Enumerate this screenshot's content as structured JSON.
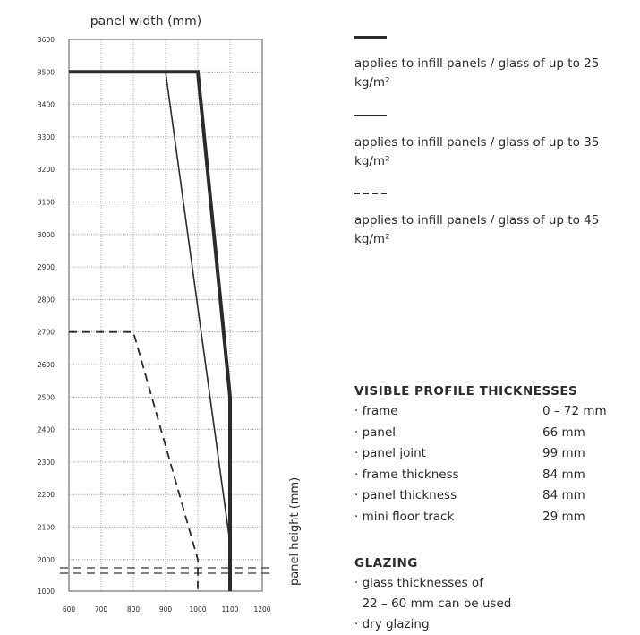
{
  "chart_data": {
    "type": "line",
    "title": "",
    "xlabel": "panel width (mm)",
    "ylabel": "panel height (mm)",
    "x_ticks": [
      600,
      700,
      800,
      900,
      1000,
      1100,
      1200
    ],
    "y_ticks": [
      1000,
      2000,
      2100,
      2200,
      2300,
      2400,
      2500,
      2600,
      2700,
      2800,
      2900,
      3000,
      3100,
      3200,
      3300,
      3400,
      3500,
      3600
    ],
    "y_axis_break": "between 1000 and 2000",
    "xlim": [
      600,
      1200
    ],
    "grid": "dotted",
    "series": [
      {
        "style": "thick",
        "points": [
          [
            600,
            3500
          ],
          [
            1000,
            3500
          ],
          [
            1100,
            2500
          ],
          [
            1100,
            1000
          ]
        ]
      },
      {
        "style": "thin",
        "points": [
          [
            900,
            3500
          ],
          [
            1100,
            2050
          ],
          [
            1100,
            1000
          ]
        ]
      },
      {
        "style": "dashed",
        "points": [
          [
            600,
            2700
          ],
          [
            800,
            2700
          ],
          [
            1000,
            2000
          ],
          [
            1000,
            1000
          ]
        ]
      }
    ]
  },
  "legend": [
    {
      "style": "thick",
      "text": "applies to infill panels / glass of up to 25 kg/m²"
    },
    {
      "style": "thin",
      "text": "applies to infill panels / glass of up to 35 kg/m²"
    },
    {
      "style": "dashed",
      "text": "applies to infill panels / glass of up to 45 kg/m²"
    }
  ],
  "specs": {
    "heading": "VISIBLE PROFILE THICKNESSES",
    "rows": [
      {
        "label": "· frame",
        "value": "0 – 72 mm"
      },
      {
        "label": "· panel",
        "value": "66 mm"
      },
      {
        "label": "· panel joint",
        "value": "99 mm"
      },
      {
        "label": "· frame thickness",
        "value": "84 mm"
      },
      {
        "label": "· panel thickness",
        "value": "84 mm"
      },
      {
        "label": "· mini floor track",
        "value": "29 mm"
      }
    ]
  },
  "glazing": {
    "heading": "GLAZING",
    "lines": [
      "· glass thicknesses of",
      "  22 – 60 mm can be used",
      "· dry glazing"
    ]
  },
  "colors": {
    "ink": "#2b2b2b",
    "grid": "#888888"
  }
}
